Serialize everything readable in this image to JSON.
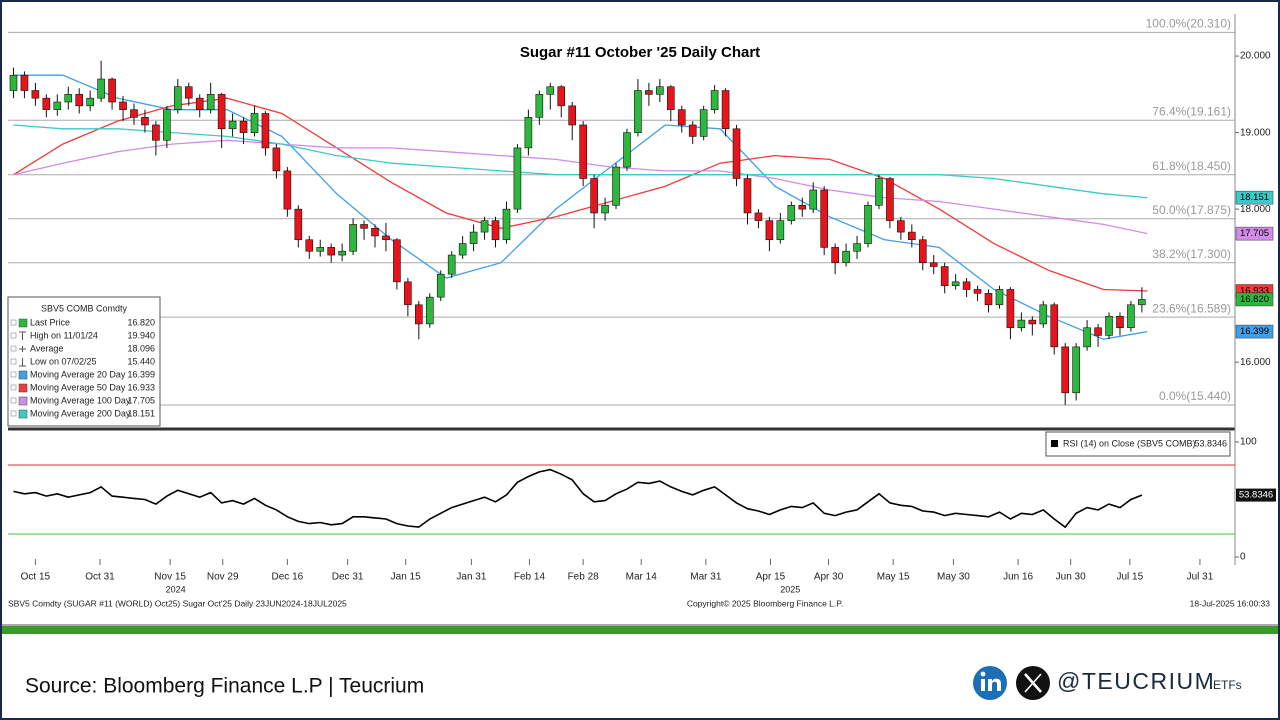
{
  "chart_data": {
    "type": "candlestick",
    "title": "Sugar #11 October '25 Daily Chart",
    "xlim": [
      0,
      112
    ],
    "ylim": [
      15.14,
      20.55
    ],
    "yticks": [
      {
        "value": 20,
        "label": "20.000"
      },
      {
        "value": 19,
        "label": "19.000"
      },
      {
        "value": 18,
        "label": "18.000"
      },
      {
        "value": 16,
        "label": "16.000"
      }
    ],
    "xticks": [
      {
        "value": 2.5,
        "label": "Oct 15"
      },
      {
        "value": 8.4,
        "label": "Oct 31"
      },
      {
        "value": 14.8,
        "label": "Nov 15"
      },
      {
        "value": 19.6,
        "label": "Nov 29"
      },
      {
        "value": 25.5,
        "label": "Dec 16"
      },
      {
        "value": 31.0,
        "label": "Dec 31"
      },
      {
        "value": 36.3,
        "label": "Jan 15"
      },
      {
        "value": 42.3,
        "label": "Jan 31"
      },
      {
        "value": 47.6,
        "label": "Feb 14"
      },
      {
        "value": 52.5,
        "label": "Feb 28"
      },
      {
        "value": 57.8,
        "label": "Mar 14"
      },
      {
        "value": 63.7,
        "label": "Mar 31"
      },
      {
        "value": 69.6,
        "label": "Apr 15"
      },
      {
        "value": 74.9,
        "label": "Apr 30"
      },
      {
        "value": 80.8,
        "label": "May 15"
      },
      {
        "value": 86.3,
        "label": "May 30"
      },
      {
        "value": 92.2,
        "label": "Jun 16"
      },
      {
        "value": 97.0,
        "label": "Jun 30"
      },
      {
        "value": 102.4,
        "label": "Jul 15"
      },
      {
        "value": 108.8,
        "label": "Jul 31"
      }
    ],
    "years": [
      {
        "value": 15.3,
        "label": "2024"
      },
      {
        "value": 71.4,
        "label": "2025"
      }
    ],
    "up_color": "#2db83d",
    "down_color": "#e8141b",
    "candles": [
      [
        19.55,
        19.85,
        19.45,
        19.75
      ],
      [
        19.75,
        19.8,
        19.45,
        19.55
      ],
      [
        19.55,
        19.65,
        19.35,
        19.45
      ],
      [
        19.45,
        19.5,
        19.2,
        19.3
      ],
      [
        19.3,
        19.5,
        19.22,
        19.4
      ],
      [
        19.4,
        19.6,
        19.3,
        19.5
      ],
      [
        19.5,
        19.58,
        19.25,
        19.35
      ],
      [
        19.35,
        19.55,
        19.28,
        19.45
      ],
      [
        19.45,
        19.94,
        19.4,
        19.7
      ],
      [
        19.7,
        19.72,
        19.3,
        19.4
      ],
      [
        19.4,
        19.48,
        19.15,
        19.3
      ],
      [
        19.3,
        19.38,
        19.1,
        19.2
      ],
      [
        19.2,
        19.3,
        19.0,
        19.1
      ],
      [
        19.1,
        19.15,
        18.7,
        18.9
      ],
      [
        18.9,
        19.35,
        18.8,
        19.3
      ],
      [
        19.3,
        19.7,
        19.25,
        19.6
      ],
      [
        19.6,
        19.65,
        19.35,
        19.45
      ],
      [
        19.45,
        19.5,
        19.2,
        19.3
      ],
      [
        19.3,
        19.65,
        19.25,
        19.5
      ],
      [
        19.5,
        19.52,
        18.8,
        19.05
      ],
      [
        19.05,
        19.25,
        18.95,
        19.15
      ],
      [
        19.15,
        19.2,
        18.85,
        19.0
      ],
      [
        19.0,
        19.35,
        18.95,
        19.25
      ],
      [
        19.25,
        19.28,
        18.7,
        18.8
      ],
      [
        18.8,
        18.85,
        18.4,
        18.5
      ],
      [
        18.5,
        18.55,
        17.9,
        18.0
      ],
      [
        18.0,
        18.05,
        17.5,
        17.6
      ],
      [
        17.6,
        17.65,
        17.35,
        17.45
      ],
      [
        17.45,
        17.6,
        17.38,
        17.5
      ],
      [
        17.5,
        17.55,
        17.3,
        17.4
      ],
      [
        17.4,
        17.55,
        17.32,
        17.45
      ],
      [
        17.45,
        17.88,
        17.4,
        17.8
      ],
      [
        17.8,
        17.85,
        17.6,
        17.75
      ],
      [
        17.75,
        17.8,
        17.5,
        17.65
      ],
      [
        17.65,
        17.82,
        17.45,
        17.6
      ],
      [
        17.6,
        17.62,
        16.95,
        17.05
      ],
      [
        17.05,
        17.1,
        16.6,
        16.75
      ],
      [
        16.75,
        16.8,
        16.3,
        16.5
      ],
      [
        16.5,
        16.9,
        16.45,
        16.85
      ],
      [
        16.85,
        17.2,
        16.8,
        17.15
      ],
      [
        17.15,
        17.45,
        17.1,
        17.4
      ],
      [
        17.4,
        17.65,
        17.35,
        17.55
      ],
      [
        17.55,
        17.8,
        17.45,
        17.7
      ],
      [
        17.7,
        17.9,
        17.6,
        17.85
      ],
      [
        17.85,
        17.9,
        17.5,
        17.6
      ],
      [
        17.6,
        18.1,
        17.55,
        18.0
      ],
      [
        18.0,
        18.85,
        17.95,
        18.8
      ],
      [
        18.8,
        19.3,
        18.7,
        19.2
      ],
      [
        19.2,
        19.55,
        19.1,
        19.5
      ],
      [
        19.5,
        19.65,
        19.3,
        19.6
      ],
      [
        19.6,
        19.62,
        19.2,
        19.35
      ],
      [
        19.35,
        19.4,
        18.9,
        19.1
      ],
      [
        19.1,
        19.15,
        18.3,
        18.4
      ],
      [
        18.4,
        18.45,
        17.75,
        17.95
      ],
      [
        17.95,
        18.15,
        17.85,
        18.05
      ],
      [
        18.05,
        18.6,
        18.0,
        18.55
      ],
      [
        18.55,
        19.05,
        18.5,
        19.0
      ],
      [
        19.0,
        19.7,
        18.95,
        19.55
      ],
      [
        19.55,
        19.65,
        19.35,
        19.5
      ],
      [
        19.5,
        19.7,
        19.4,
        19.6
      ],
      [
        19.6,
        19.62,
        19.15,
        19.3
      ],
      [
        19.3,
        19.35,
        19.0,
        19.1
      ],
      [
        19.1,
        19.15,
        18.85,
        18.95
      ],
      [
        18.95,
        19.35,
        18.9,
        19.3
      ],
      [
        19.3,
        19.62,
        19.25,
        19.55
      ],
      [
        19.55,
        19.58,
        18.95,
        19.05
      ],
      [
        19.05,
        19.1,
        18.3,
        18.4
      ],
      [
        18.4,
        18.45,
        17.8,
        17.95
      ],
      [
        17.95,
        18.0,
        17.75,
        17.85
      ],
      [
        17.85,
        17.9,
        17.45,
        17.6
      ],
      [
        17.6,
        17.95,
        17.55,
        17.85
      ],
      [
        17.85,
        18.1,
        17.8,
        18.05
      ],
      [
        18.05,
        18.15,
        17.9,
        18.0
      ],
      [
        18.0,
        18.35,
        17.95,
        18.25
      ],
      [
        18.25,
        18.3,
        17.4,
        17.5
      ],
      [
        17.5,
        17.55,
        17.15,
        17.3
      ],
      [
        17.3,
        17.55,
        17.25,
        17.45
      ],
      [
        17.45,
        17.65,
        17.35,
        17.55
      ],
      [
        17.55,
        18.1,
        17.5,
        18.05
      ],
      [
        18.05,
        18.45,
        18.0,
        18.4
      ],
      [
        18.4,
        18.42,
        17.75,
        17.85
      ],
      [
        17.85,
        17.9,
        17.6,
        17.7
      ],
      [
        17.7,
        17.8,
        17.5,
        17.6
      ],
      [
        17.6,
        17.65,
        17.2,
        17.3
      ],
      [
        17.3,
        17.4,
        17.15,
        17.25
      ],
      [
        17.25,
        17.3,
        16.9,
        17.0
      ],
      [
        17.0,
        17.15,
        16.95,
        17.05
      ],
      [
        17.05,
        17.1,
        16.85,
        16.95
      ],
      [
        16.95,
        17.0,
        16.8,
        16.9
      ],
      [
        16.9,
        16.95,
        16.65,
        16.75
      ],
      [
        16.75,
        17.0,
        16.7,
        16.95
      ],
      [
        16.95,
        16.98,
        16.3,
        16.45
      ],
      [
        16.45,
        16.65,
        16.4,
        16.55
      ],
      [
        16.55,
        16.6,
        16.35,
        16.5
      ],
      [
        16.5,
        16.8,
        16.45,
        16.75
      ],
      [
        16.75,
        16.78,
        16.1,
        16.2
      ],
      [
        16.2,
        16.25,
        15.44,
        15.6
      ],
      [
        15.6,
        16.25,
        15.5,
        16.2
      ],
      [
        16.2,
        16.55,
        16.15,
        16.45
      ],
      [
        16.45,
        16.5,
        16.2,
        16.35
      ],
      [
        16.35,
        16.65,
        16.3,
        16.6
      ],
      [
        16.6,
        16.65,
        16.35,
        16.45
      ],
      [
        16.45,
        16.8,
        16.4,
        16.75
      ],
      [
        16.75,
        16.98,
        16.65,
        16.82
      ]
    ],
    "fib": [
      {
        "label": "100.0%(20.310)",
        "value": 20.31
      },
      {
        "label": "76.4%(19.161)",
        "value": 19.161
      },
      {
        "label": "61.8%(18.450)",
        "value": 18.45
      },
      {
        "label": "50.0%(17.875)",
        "value": 17.875
      },
      {
        "label": "38.2%(17.300)",
        "value": 17.3
      },
      {
        "label": "23.6%(16.589)",
        "value": 16.589
      },
      {
        "label": "0.0%(15.440)",
        "value": 15.44
      }
    ],
    "legend": {
      "title": "SBV5 COMB Comdty",
      "items": [
        {
          "name": "Last Price",
          "value": "16.820",
          "color": "#2db83d"
        },
        {
          "name": "High on 11/01/24",
          "value": "19.940"
        },
        {
          "name": "Average",
          "value": "18.096"
        },
        {
          "name": "Low on 07/02/25",
          "value": "15.440"
        }
      ]
    },
    "ma_x": [
      0.5,
      5,
      10,
      15,
      20,
      25,
      30,
      35,
      40,
      45,
      50,
      55,
      60,
      65,
      70,
      75,
      80,
      85,
      90,
      95,
      100,
      104
    ],
    "series": [
      {
        "name": "Moving Average 20 Day",
        "value": "16.399",
        "color": "#3f9fe8",
        "values": [
          19.75,
          19.75,
          19.45,
          19.3,
          19.3,
          18.95,
          18.2,
          17.6,
          17.1,
          17.3,
          18.0,
          18.55,
          19.1,
          19.05,
          18.3,
          17.9,
          17.6,
          17.5,
          16.95,
          16.6,
          16.3,
          16.4
        ]
      },
      {
        "name": "Moving Average 50 Day",
        "value": "16.933",
        "color": "#ef3b3b",
        "values": [
          18.45,
          18.85,
          19.15,
          19.35,
          19.45,
          19.25,
          18.8,
          18.35,
          17.95,
          17.75,
          17.9,
          18.1,
          18.3,
          18.6,
          18.7,
          18.65,
          18.4,
          18.0,
          17.55,
          17.2,
          16.95,
          16.93
        ]
      },
      {
        "name": "Moving Average 100 Day",
        "value": "17.705",
        "color": "#d28be8",
        "values": [
          18.45,
          18.6,
          18.75,
          18.85,
          18.9,
          18.85,
          18.8,
          18.8,
          18.75,
          18.7,
          18.65,
          18.55,
          18.5,
          18.5,
          18.4,
          18.25,
          18.15,
          18.1,
          18.0,
          17.9,
          17.8,
          17.68
        ]
      },
      {
        "name": "Moving Average 200 Day",
        "value": "18.151",
        "color": "#3cc9c9",
        "values": [
          19.1,
          19.05,
          19.05,
          19.0,
          18.95,
          18.85,
          18.7,
          18.6,
          18.55,
          18.5,
          18.45,
          18.45,
          18.45,
          18.45,
          18.45,
          18.45,
          18.45,
          18.45,
          18.4,
          18.3,
          18.2,
          18.15
        ]
      }
    ],
    "rsi": {
      "name": "RSI (14)  on Close (SBV5 COMB)",
      "ylim": [
        0,
        100
      ],
      "yticks": [
        100,
        0
      ],
      "levels": [
        {
          "value": 80,
          "color": "#e03030"
        },
        {
          "value": 20,
          "color": "#3cc93c"
        }
      ],
      "values": [
        57,
        55,
        56,
        53,
        55,
        52,
        54,
        56,
        61,
        53,
        52,
        51,
        50,
        46,
        53,
        58,
        55,
        52,
        56,
        47,
        49,
        46,
        51,
        45,
        41,
        35,
        31,
        29,
        30,
        28,
        29,
        35,
        35,
        34,
        33,
        29,
        27,
        26,
        33,
        38,
        43,
        46,
        49,
        52,
        48,
        54,
        65,
        70,
        74,
        76,
        72,
        67,
        55,
        48,
        49,
        55,
        59,
        65,
        64,
        66,
        61,
        57,
        54,
        58,
        61,
        54,
        47,
        42,
        40,
        37,
        41,
        44,
        43,
        47,
        38,
        36,
        39,
        41,
        48,
        55,
        47,
        45,
        44,
        40,
        39,
        36,
        38,
        37,
        36,
        35,
        39,
        33,
        38,
        37,
        41,
        33,
        26,
        38,
        43,
        41,
        46,
        43,
        50,
        53.8346
      ]
    },
    "footer": {
      "left": "SBV5 Comdty (SUGAR #11 (WORLD) Oct25) Sugar Oct'25  Daily 23JUN2024-18JUL2025",
      "center": "Copyright© 2025 Bloomberg Finance L.P.",
      "right": "18-Jul-2025 16:00:33"
    }
  },
  "source": "Source: Bloomberg Finance L.P | Teucrium",
  "brand": {
    "handle": "@TEUCRIUM",
    "suffix": "ETFs"
  }
}
